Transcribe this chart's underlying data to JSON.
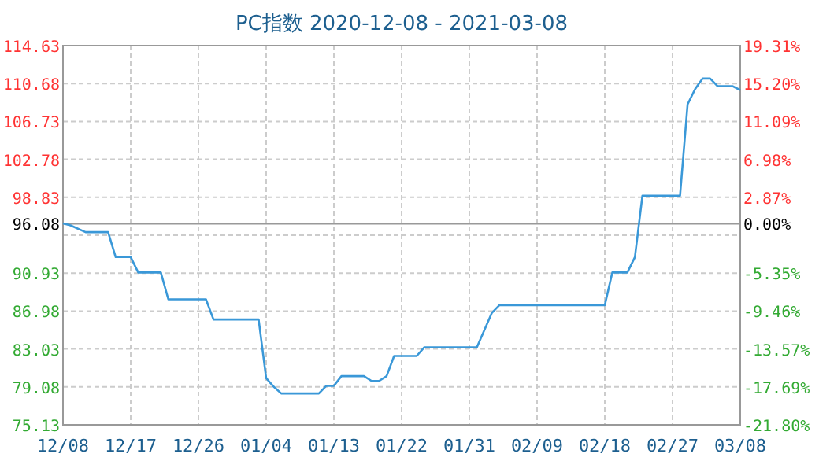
{
  "chart_data": {
    "type": "line",
    "title": "PC指数 2020-12-08 - 2021-03-08",
    "x": [
      "2020-12-08",
      "2020-12-09",
      "2020-12-11",
      "2020-12-14",
      "2020-12-15",
      "2020-12-17",
      "2020-12-18",
      "2020-12-21",
      "2020-12-22",
      "2020-12-27",
      "2020-12-28",
      "2021-01-03",
      "2021-01-04",
      "2021-01-05",
      "2021-01-06",
      "2021-01-11",
      "2021-01-12",
      "2021-01-13",
      "2021-01-14",
      "2021-01-17",
      "2021-01-18",
      "2021-01-19",
      "2021-01-20",
      "2021-01-21",
      "2021-01-24",
      "2021-01-25",
      "2021-02-01",
      "2021-02-03",
      "2021-02-04",
      "2021-02-18",
      "2021-02-19",
      "2021-02-21",
      "2021-02-22",
      "2021-02-23",
      "2021-02-28",
      "2021-03-01",
      "2021-03-02",
      "2021-03-03",
      "2021-03-04",
      "2021-03-05",
      "2021-03-07",
      "2021-03-08"
    ],
    "series": [
      {
        "color": "#3a98d8",
        "values": [
          96.1,
          95.9,
          95.2,
          95.2,
          92.6,
          92.6,
          91.0,
          91.0,
          88.2,
          88.2,
          86.1,
          86.1,
          80.0,
          79.1,
          78.4,
          78.4,
          79.2,
          79.2,
          80.2,
          80.2,
          79.7,
          79.7,
          80.2,
          82.3,
          82.3,
          83.2,
          83.2,
          86.8,
          87.6,
          87.6,
          91.0,
          91.0,
          92.6,
          99.0,
          99.0,
          108.5,
          110.1,
          111.2,
          111.2,
          110.4,
          110.4,
          110.0
        ]
      }
    ],
    "xlim": [
      "2020-12-08",
      "2021-03-08"
    ],
    "xticks": [
      {
        "value": "2020-12-08",
        "label": "12/08"
      },
      {
        "value": "2020-12-17",
        "label": "12/17"
      },
      {
        "value": "2020-12-26",
        "label": "12/26"
      },
      {
        "value": "2021-01-04",
        "label": "01/04"
      },
      {
        "value": "2021-01-13",
        "label": "01/13"
      },
      {
        "value": "2021-01-22",
        "label": "01/22"
      },
      {
        "value": "2021-01-31",
        "label": "01/31"
      },
      {
        "value": "2021-02-09",
        "label": "02/09"
      },
      {
        "value": "2021-02-18",
        "label": "02/18"
      },
      {
        "value": "2021-02-27",
        "label": "02/27"
      },
      {
        "value": "2021-03-08",
        "label": "03/08"
      }
    ],
    "ylim": [
      75.13,
      114.63
    ],
    "yticks": [
      75.13,
      79.08,
      83.03,
      86.98,
      90.93,
      {
        "value": 94.88,
        "label": null
      },
      98.83,
      102.78,
      106.73,
      110.68,
      114.63
    ],
    "y2lim": [
      -21.8,
      19.31
    ],
    "y2ticks": [
      {
        "value": -21.8,
        "label": "-21.80%"
      },
      {
        "value": -17.69,
        "label": "-17.69%"
      },
      {
        "value": -13.57,
        "label": "-13.57%"
      },
      {
        "value": -9.46,
        "label": "-9.46%"
      },
      {
        "value": -5.35,
        "label": "-5.35%"
      },
      {
        "value": 0,
        "label": "0.00%"
      },
      {
        "value": 2.87,
        "label": "2.87%"
      },
      {
        "value": 6.98,
        "label": "6.98%"
      },
      {
        "value": 11.09,
        "label": "11.09%"
      },
      {
        "value": 15.2,
        "label": "15.20%"
      },
      {
        "value": 19.31,
        "label": "19.31%"
      }
    ],
    "ref_lines": [
      {
        "axis": "y",
        "value": 96.08,
        "label": "96.08",
        "color": "#999999"
      }
    ],
    "grid": true,
    "marker": "none",
    "line_style": "solid"
  }
}
